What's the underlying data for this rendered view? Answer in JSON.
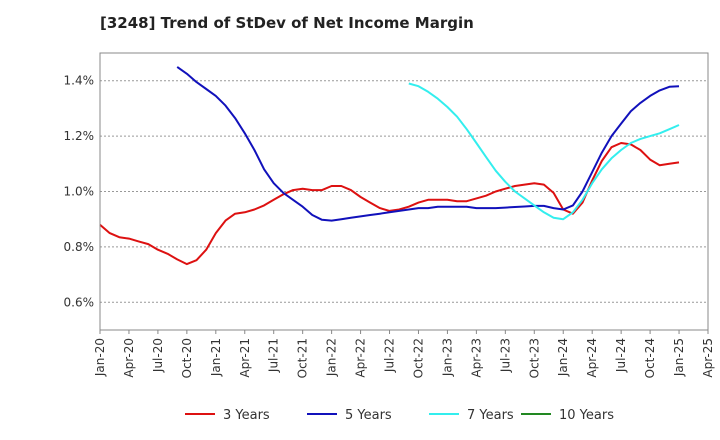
{
  "chart_data": {
    "type": "line",
    "title": "[3248]  Trend of StDev of Net Income Margin",
    "xlabel": "",
    "ylabel": "",
    "x_ticks": [
      "Jan-20",
      "Apr-20",
      "Jul-20",
      "Oct-20",
      "Jan-21",
      "Apr-21",
      "Jul-21",
      "Oct-21",
      "Jan-22",
      "Apr-22",
      "Jul-22",
      "Oct-22",
      "Jan-23",
      "Apr-23",
      "Jul-23",
      "Oct-23",
      "Jan-24",
      "Apr-24",
      "Jul-24",
      "Oct-24",
      "Jan-25",
      "Apr-25"
    ],
    "y_ticks": [
      "0.6%",
      "0.8%",
      "1.0%",
      "1.2%",
      "1.4%"
    ],
    "y_tick_values": [
      0.6,
      0.8,
      1.0,
      1.2,
      1.4
    ],
    "ylim": [
      0.5,
      1.5
    ],
    "grid": "horizontal-dashed",
    "legend": "bottom",
    "series": [
      {
        "name": "3 Years",
        "color": "#dd1111",
        "points": [
          [
            "2020-01",
            0.88
          ],
          [
            "2020-02",
            0.85
          ],
          [
            "2020-03",
            0.835
          ],
          [
            "2020-04",
            0.83
          ],
          [
            "2020-05",
            0.82
          ],
          [
            "2020-06",
            0.81
          ],
          [
            "2020-07",
            0.79
          ],
          [
            "2020-08",
            0.775
          ],
          [
            "2020-09",
            0.755
          ],
          [
            "2020-10",
            0.738
          ],
          [
            "2020-11",
            0.752
          ],
          [
            "2020-12",
            0.79
          ],
          [
            "2021-01",
            0.85
          ],
          [
            "2021-02",
            0.895
          ],
          [
            "2021-03",
            0.92
          ],
          [
            "2021-04",
            0.925
          ],
          [
            "2021-05",
            0.935
          ],
          [
            "2021-06",
            0.95
          ],
          [
            "2021-07",
            0.97
          ],
          [
            "2021-08",
            0.99
          ],
          [
            "2021-09",
            1.005
          ],
          [
            "2021-10",
            1.01
          ],
          [
            "2021-11",
            1.005
          ],
          [
            "2021-12",
            1.005
          ],
          [
            "2022-01",
            1.02
          ],
          [
            "2022-02",
            1.02
          ],
          [
            "2022-03",
            1.005
          ],
          [
            "2022-04",
            0.98
          ],
          [
            "2022-05",
            0.96
          ],
          [
            "2022-06",
            0.94
          ],
          [
            "2022-07",
            0.93
          ],
          [
            "2022-08",
            0.935
          ],
          [
            "2022-09",
            0.945
          ],
          [
            "2022-10",
            0.96
          ],
          [
            "2022-11",
            0.97
          ],
          [
            "2022-12",
            0.97
          ],
          [
            "2023-01",
            0.97
          ],
          [
            "2023-02",
            0.965
          ],
          [
            "2023-03",
            0.965
          ],
          [
            "2023-04",
            0.975
          ],
          [
            "2023-05",
            0.985
          ],
          [
            "2023-06",
            1.0
          ],
          [
            "2023-07",
            1.01
          ],
          [
            "2023-08",
            1.02
          ],
          [
            "2023-09",
            1.025
          ],
          [
            "2023-10",
            1.03
          ],
          [
            "2023-11",
            1.025
          ],
          [
            "2023-12",
            0.995
          ],
          [
            "2024-01",
            0.935
          ],
          [
            "2024-02",
            0.92
          ],
          [
            "2024-03",
            0.96
          ],
          [
            "2024-04",
            1.04
          ],
          [
            "2024-05",
            1.11
          ],
          [
            "2024-06",
            1.16
          ],
          [
            "2024-07",
            1.175
          ],
          [
            "2024-08",
            1.17
          ],
          [
            "2024-09",
            1.15
          ],
          [
            "2024-10",
            1.115
          ],
          [
            "2024-11",
            1.095
          ],
          [
            "2024-12",
            1.1
          ],
          [
            "2025-01",
            1.105
          ]
        ]
      },
      {
        "name": "5 Years",
        "color": "#1111bb",
        "points": [
          [
            "2020-09",
            1.45
          ],
          [
            "2020-10",
            1.425
          ],
          [
            "2020-11",
            1.395
          ],
          [
            "2020-12",
            1.37
          ],
          [
            "2021-01",
            1.345
          ],
          [
            "2021-02",
            1.31
          ],
          [
            "2021-03",
            1.265
          ],
          [
            "2021-04",
            1.21
          ],
          [
            "2021-05",
            1.15
          ],
          [
            "2021-06",
            1.08
          ],
          [
            "2021-07",
            1.03
          ],
          [
            "2021-08",
            0.995
          ],
          [
            "2021-09",
            0.97
          ],
          [
            "2021-10",
            0.945
          ],
          [
            "2021-11",
            0.915
          ],
          [
            "2021-12",
            0.898
          ],
          [
            "2022-01",
            0.895
          ],
          [
            "2022-02",
            0.9
          ],
          [
            "2022-03",
            0.905
          ],
          [
            "2022-04",
            0.91
          ],
          [
            "2022-05",
            0.915
          ],
          [
            "2022-06",
            0.92
          ],
          [
            "2022-07",
            0.925
          ],
          [
            "2022-08",
            0.93
          ],
          [
            "2022-09",
            0.935
          ],
          [
            "2022-10",
            0.94
          ],
          [
            "2022-11",
            0.94
          ],
          [
            "2022-12",
            0.945
          ],
          [
            "2023-01",
            0.945
          ],
          [
            "2023-02",
            0.945
          ],
          [
            "2023-03",
            0.945
          ],
          [
            "2023-04",
            0.94
          ],
          [
            "2023-05",
            0.94
          ],
          [
            "2023-06",
            0.94
          ],
          [
            "2023-07",
            0.942
          ],
          [
            "2023-08",
            0.944
          ],
          [
            "2023-09",
            0.946
          ],
          [
            "2023-10",
            0.948
          ],
          [
            "2023-11",
            0.948
          ],
          [
            "2023-12",
            0.94
          ],
          [
            "2024-01",
            0.935
          ],
          [
            "2024-02",
            0.95
          ],
          [
            "2024-03",
            1.0
          ],
          [
            "2024-04",
            1.07
          ],
          [
            "2024-05",
            1.14
          ],
          [
            "2024-06",
            1.2
          ],
          [
            "2024-07",
            1.245
          ],
          [
            "2024-08",
            1.29
          ],
          [
            "2024-09",
            1.32
          ],
          [
            "2024-10",
            1.345
          ],
          [
            "2024-11",
            1.365
          ],
          [
            "2024-12",
            1.378
          ],
          [
            "2025-01",
            1.38
          ]
        ]
      },
      {
        "name": "7 Years",
        "color": "#33eeee",
        "points": [
          [
            "2022-09",
            1.39
          ],
          [
            "2022-10",
            1.38
          ],
          [
            "2022-11",
            1.36
          ],
          [
            "2022-12",
            1.335
          ],
          [
            "2023-01",
            1.305
          ],
          [
            "2023-02",
            1.27
          ],
          [
            "2023-03",
            1.225
          ],
          [
            "2023-04",
            1.175
          ],
          [
            "2023-05",
            1.125
          ],
          [
            "2023-06",
            1.075
          ],
          [
            "2023-07",
            1.035
          ],
          [
            "2023-08",
            1.0
          ],
          [
            "2023-09",
            0.975
          ],
          [
            "2023-10",
            0.95
          ],
          [
            "2023-11",
            0.925
          ],
          [
            "2023-12",
            0.905
          ],
          [
            "2024-01",
            0.9
          ],
          [
            "2024-02",
            0.925
          ],
          [
            "2024-03",
            0.97
          ],
          [
            "2024-04",
            1.03
          ],
          [
            "2024-05",
            1.08
          ],
          [
            "2024-06",
            1.12
          ],
          [
            "2024-07",
            1.15
          ],
          [
            "2024-08",
            1.175
          ],
          [
            "2024-09",
            1.19
          ],
          [
            "2024-10",
            1.2
          ],
          [
            "2024-11",
            1.21
          ],
          [
            "2024-12",
            1.225
          ],
          [
            "2025-01",
            1.24
          ]
        ]
      },
      {
        "name": "10 Years",
        "color": "#228822",
        "points": []
      }
    ]
  }
}
